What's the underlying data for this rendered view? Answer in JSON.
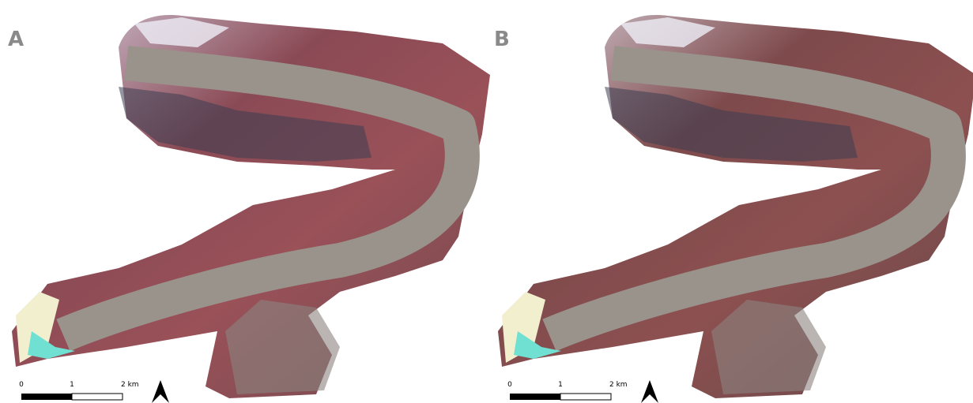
{
  "panels": [
    {
      "label": "A",
      "scale_bar": {
        "ticks": [
          "0",
          "1",
          "2 km"
        ]
      }
    },
    {
      "label": "B",
      "scale_bar": {
        "ticks": [
          "0",
          "1",
          "2 km"
        ]
      }
    }
  ]
}
